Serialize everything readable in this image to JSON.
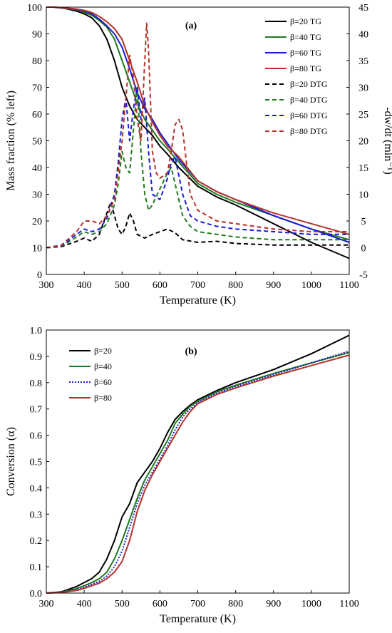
{
  "chart_data": [
    {
      "type": "line",
      "panel_label": "(a)",
      "xlabel": "Temperature (K)",
      "ylabel": "Mass fraction (% left)",
      "y2label": "-dw/dt (min⁻¹)",
      "xlim": [
        300,
        1100
      ],
      "ylim": [
        0,
        100
      ],
      "y2lim": [
        -5,
        45
      ],
      "xticks": [
        300,
        400,
        500,
        600,
        700,
        800,
        900,
        1000,
        1100
      ],
      "yticks": [
        0,
        10,
        20,
        30,
        40,
        50,
        60,
        70,
        80,
        90,
        100
      ],
      "y2ticks": [
        -5,
        0,
        5,
        10,
        15,
        20,
        25,
        30,
        35,
        40,
        45
      ],
      "grid": false,
      "legend_position": "top-right",
      "series": [
        {
          "name": "β=20 TG",
          "axis": "left",
          "color": "#000000",
          "dash": "solid",
          "x": [
            300,
            320,
            350,
            380,
            400,
            420,
            440,
            460,
            480,
            500,
            520,
            540,
            560,
            580,
            600,
            620,
            650,
            700,
            750,
            800,
            900,
            1000,
            1100
          ],
          "y": [
            100,
            100,
            99.5,
            98.5,
            97.5,
            96,
            93,
            88,
            80,
            70,
            63,
            58,
            55,
            52,
            48,
            45,
            40,
            33,
            29,
            26,
            19,
            12,
            6
          ]
        },
        {
          "name": "β=40 TG",
          "axis": "left",
          "color": "#1e7a1e",
          "dash": "solid",
          "x": [
            300,
            320,
            350,
            380,
            400,
            420,
            440,
            460,
            480,
            500,
            520,
            540,
            560,
            580,
            600,
            620,
            650,
            700,
            750,
            800,
            900,
            1000,
            1100
          ],
          "y": [
            100,
            100,
            99.5,
            99,
            98,
            97,
            95,
            92.5,
            88,
            80,
            72,
            64,
            58,
            54,
            50,
            47,
            42,
            34,
            30,
            27,
            22,
            17,
            13
          ]
        },
        {
          "name": "β=60 TG",
          "axis": "left",
          "color": "#1a1ad6",
          "dash": "solid",
          "x": [
            300,
            320,
            350,
            380,
            400,
            420,
            440,
            460,
            480,
            500,
            520,
            540,
            560,
            580,
            600,
            620,
            650,
            700,
            750,
            800,
            900,
            1000,
            1100
          ],
          "y": [
            100,
            100,
            99.6,
            99.2,
            98.5,
            97.5,
            95.5,
            93,
            90,
            85,
            77,
            68,
            62,
            58,
            53,
            49,
            43,
            35,
            31,
            28,
            22,
            17,
            12
          ]
        },
        {
          "name": "β=80 TG",
          "axis": "left",
          "color": "#b5322a",
          "dash": "solid",
          "x": [
            300,
            320,
            350,
            380,
            400,
            420,
            440,
            460,
            480,
            500,
            520,
            540,
            560,
            580,
            600,
            620,
            650,
            700,
            750,
            800,
            900,
            1000,
            1100
          ],
          "y": [
            100,
            100,
            99.7,
            99.3,
            98.8,
            98,
            96.5,
            94.5,
            92,
            88,
            80,
            72,
            63,
            57,
            52,
            48,
            44,
            35,
            31,
            28,
            23,
            19,
            15
          ]
        },
        {
          "name": "β=20 DTG",
          "axis": "right",
          "color": "#000000",
          "dash": "dashed",
          "x": [
            300,
            340,
            380,
            400,
            420,
            440,
            460,
            470,
            480,
            490,
            500,
            510,
            520,
            530,
            540,
            560,
            580,
            600,
            620,
            640,
            660,
            700,
            750,
            800,
            900,
            1000,
            1100
          ],
          "y": [
            0,
            0.2,
            1.2,
            1.8,
            1.2,
            2.5,
            6.5,
            8.5,
            6,
            3.5,
            2.5,
            4,
            6.5,
            5,
            2.5,
            1.8,
            2.5,
            3,
            3.5,
            2.8,
            1.5,
            1,
            1.2,
            0.8,
            0.5,
            0.5,
            0.5
          ]
        },
        {
          "name": "β=40 DTG",
          "axis": "right",
          "color": "#1e7a1e",
          "dash": "dashed",
          "x": [
            300,
            340,
            380,
            400,
            420,
            440,
            460,
            480,
            490,
            500,
            510,
            520,
            530,
            540,
            550,
            560,
            570,
            580,
            600,
            620,
            630,
            640,
            660,
            680,
            700,
            750,
            800,
            900,
            1000,
            1100
          ],
          "y": [
            0,
            0.3,
            2,
            3,
            2.5,
            3,
            4.5,
            8,
            12,
            18,
            15,
            14,
            22,
            30,
            18,
            10,
            7,
            8,
            11,
            14,
            15,
            12,
            6,
            4,
            3,
            2.5,
            2,
            1.5,
            1.5,
            1.5
          ]
        },
        {
          "name": "β=60 DTG",
          "axis": "right",
          "color": "#1a1ad6",
          "dash": "dashed",
          "x": [
            300,
            340,
            380,
            400,
            420,
            440,
            460,
            480,
            490,
            500,
            510,
            520,
            530,
            540,
            550,
            560,
            570,
            580,
            600,
            620,
            630,
            640,
            660,
            680,
            700,
            750,
            800,
            900,
            1000,
            1100
          ],
          "y": [
            0,
            0.4,
            2.5,
            3.5,
            3,
            3.5,
            5.5,
            10,
            16,
            24,
            28,
            20,
            26,
            30,
            24,
            28,
            18,
            10,
            9,
            13,
            16,
            17,
            10,
            6,
            5,
            4,
            3.5,
            3,
            2.5,
            2.5
          ]
        },
        {
          "name": "β=80 DTG",
          "axis": "right",
          "color": "#b5322a",
          "dash": "dashed",
          "x": [
            300,
            340,
            380,
            400,
            420,
            440,
            460,
            480,
            500,
            510,
            520,
            530,
            540,
            550,
            560,
            565,
            570,
            580,
            590,
            600,
            620,
            630,
            640,
            650,
            660,
            680,
            700,
            750,
            800,
            900,
            1000,
            1100
          ],
          "y": [
            0,
            0.5,
            3,
            5,
            5,
            4.5,
            6,
            9,
            20,
            28,
            36,
            32,
            24,
            20,
            35,
            42,
            37,
            18,
            14,
            13,
            14,
            18,
            23,
            24,
            22,
            10,
            7,
            5,
            4.5,
            3.5,
            3,
            3
          ]
        }
      ]
    },
    {
      "type": "line",
      "panel_label": "(b)",
      "xlabel": "Temperature (K)",
      "ylabel": "Conversion (α)",
      "xlim": [
        300,
        1100
      ],
      "ylim": [
        0,
        1.0
      ],
      "xticks": [
        300,
        400,
        500,
        600,
        700,
        800,
        900,
        1000,
        1100
      ],
      "yticks": [
        0.0,
        0.1,
        0.2,
        0.3,
        0.4,
        0.5,
        0.6,
        0.7,
        0.8,
        0.9,
        1.0
      ],
      "ytick_labels": [
        "0.0",
        "0.1",
        "0.2",
        "0.3",
        "0.4",
        "0.5",
        "0.6",
        "0.7",
        "0.8",
        "0.9",
        "1.0"
      ],
      "grid": false,
      "legend_position": "top-left",
      "series": [
        {
          "name": "β=20",
          "color": "#000000",
          "dash": "solid",
          "x": [
            300,
            340,
            380,
            400,
            420,
            440,
            460,
            480,
            500,
            520,
            540,
            560,
            580,
            600,
            620,
            640,
            660,
            680,
            700,
            750,
            800,
            900,
            1000,
            1100
          ],
          "y": [
            0,
            0.005,
            0.025,
            0.04,
            0.055,
            0.08,
            0.13,
            0.2,
            0.29,
            0.34,
            0.42,
            0.46,
            0.5,
            0.55,
            0.61,
            0.66,
            0.69,
            0.715,
            0.735,
            0.77,
            0.8,
            0.85,
            0.91,
            0.98
          ]
        },
        {
          "name": "β=40",
          "color": "#1e7a1e",
          "dash": "solid",
          "x": [
            300,
            340,
            380,
            400,
            420,
            440,
            460,
            480,
            500,
            520,
            540,
            560,
            580,
            600,
            620,
            640,
            660,
            680,
            700,
            750,
            800,
            900,
            1000,
            1100
          ],
          "y": [
            0,
            0.003,
            0.017,
            0.028,
            0.04,
            0.055,
            0.08,
            0.13,
            0.2,
            0.28,
            0.36,
            0.43,
            0.48,
            0.53,
            0.58,
            0.645,
            0.68,
            0.71,
            0.73,
            0.765,
            0.79,
            0.835,
            0.875,
            0.915
          ]
        },
        {
          "name": "β=60",
          "color": "#1a1ad6",
          "dash": "dotted",
          "x": [
            300,
            340,
            380,
            400,
            420,
            440,
            460,
            480,
            500,
            520,
            540,
            560,
            580,
            600,
            620,
            640,
            660,
            680,
            700,
            750,
            800,
            900,
            1000,
            1100
          ],
          "y": [
            0,
            0.003,
            0.013,
            0.022,
            0.033,
            0.045,
            0.065,
            0.1,
            0.16,
            0.25,
            0.34,
            0.41,
            0.46,
            0.51,
            0.56,
            0.62,
            0.67,
            0.7,
            0.725,
            0.76,
            0.785,
            0.83,
            0.875,
            0.92
          ]
        },
        {
          "name": "β=80",
          "color": "#b5322a",
          "dash": "solid",
          "x": [
            300,
            340,
            380,
            400,
            420,
            440,
            460,
            480,
            500,
            520,
            540,
            560,
            580,
            600,
            620,
            640,
            660,
            680,
            700,
            750,
            800,
            900,
            1000,
            1100
          ],
          "y": [
            0,
            0.002,
            0.01,
            0.018,
            0.028,
            0.038,
            0.055,
            0.08,
            0.12,
            0.2,
            0.31,
            0.39,
            0.45,
            0.5,
            0.55,
            0.6,
            0.65,
            0.69,
            0.72,
            0.755,
            0.78,
            0.825,
            0.865,
            0.905
          ]
        }
      ]
    }
  ]
}
